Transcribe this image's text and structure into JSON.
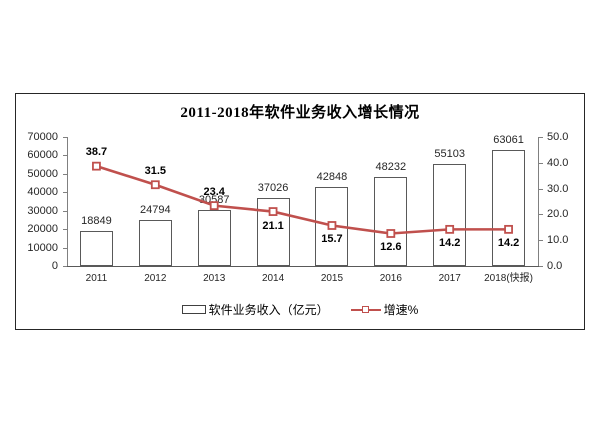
{
  "chart_data": {
    "type": "bar+line",
    "title": "2011-2018年软件业务收入增长情况",
    "categories": [
      "2011",
      "2012",
      "2013",
      "2014",
      "2015",
      "2016",
      "2017",
      "2018(快报)"
    ],
    "series": [
      {
        "name": "软件业务收入（亿元）",
        "type": "bar",
        "axis": "left",
        "values": [
          18849,
          24794,
          30587,
          37026,
          42848,
          48232,
          55103,
          63061
        ]
      },
      {
        "name": "增速%",
        "type": "line",
        "axis": "right",
        "values": [
          38.7,
          31.5,
          23.4,
          21.1,
          15.7,
          12.6,
          14.2,
          14.2
        ],
        "label_positions": [
          "above",
          "above",
          "above",
          "below",
          "below",
          "below",
          "below",
          "below"
        ]
      }
    ],
    "left_axis": {
      "min": 0,
      "max": 70000,
      "step": 10000
    },
    "right_axis": {
      "min": 0,
      "max": 50,
      "step": 10,
      "decimals": 1
    },
    "grid": false,
    "legend_position": "bottom",
    "colors": {
      "line": "#c0504d",
      "marker_fill": "#ffffff",
      "bar_fill": "#ffffff",
      "bar_border": "#595959",
      "axis": "#808080",
      "text": "#262626",
      "title": "#000000"
    }
  }
}
